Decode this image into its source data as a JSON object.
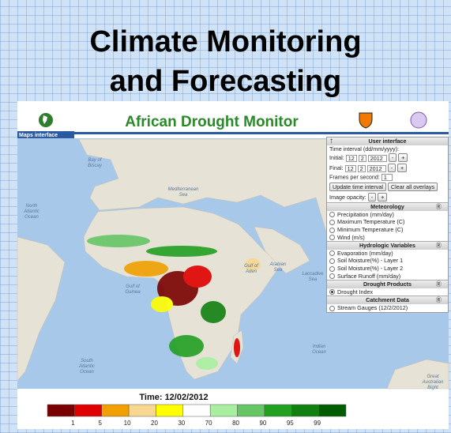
{
  "slide": {
    "title_line1": "Climate Monitoring",
    "title_line2": "and Forecasting"
  },
  "app": {
    "title": "African Drought Monitor",
    "tab": "Maps interface",
    "panel": {
      "header": "User interface",
      "time_interval": "Time interval (dd/mm/yyyy):",
      "initial": {
        "label": "Initial:",
        "day": "12",
        "month": "2",
        "year": "2012"
      },
      "final": {
        "label": "Final:",
        "day": "12",
        "month": "2",
        "year": "2012"
      },
      "stepper": [
        "-",
        "+"
      ],
      "fps": {
        "label": "Frames per second:",
        "value": "1"
      },
      "buttons": [
        "Update time interval",
        "Clear all overlays"
      ],
      "opacity": "Image opacity:",
      "sections": [
        {
          "title": "Meteorology",
          "options": [
            {
              "label": "Precipitation (mm/day)",
              "checked": false
            },
            {
              "label": "Maximum Temperature (C)",
              "checked": false
            },
            {
              "label": "Minimum Temperature (C)",
              "checked": false
            },
            {
              "label": "Wind (m/s)",
              "checked": false
            }
          ]
        },
        {
          "title": "Hydrologic Variables",
          "options": [
            {
              "label": "Evaporation (mm/day)",
              "checked": false
            },
            {
              "label": "Soil Moisture(%) - Layer 1",
              "checked": false
            },
            {
              "label": "Soil Moisture(%) - Layer 2",
              "checked": false
            },
            {
              "label": "Surface Runoff (mm/day)",
              "checked": false
            }
          ]
        },
        {
          "title": "Drought Products",
          "options": [
            {
              "label": "Drought Index",
              "checked": true
            }
          ]
        },
        {
          "title": "Catchment Data",
          "options": [
            {
              "label": "Stream Gauges (12/2/2012)",
              "checked": false
            }
          ]
        }
      ]
    },
    "map_labels": [
      [
        "North",
        "Atlantic",
        "Ocean"
      ],
      [
        "Bay of",
        "Biscay"
      ],
      [
        "Mediterranean",
        "Sea"
      ],
      [
        "Gulf of",
        "Guinea"
      ],
      [
        "Gulf of",
        "Aden"
      ],
      [
        "Arabian",
        "Sea"
      ],
      [
        "Laccadive",
        "Sea"
      ],
      [
        "Indian",
        "Ocean"
      ],
      [
        "South",
        "Atlantic",
        "Ocean"
      ],
      [
        "Great",
        "Australian",
        "Bight"
      ]
    ],
    "time": "Time: 12/02/2012",
    "legend": {
      "colors": [
        "#7a0000",
        "#e00000",
        "#f0a000",
        "#f8d890",
        "#ffff00",
        "#ffffff",
        "#a8f0a0",
        "#66c666",
        "#22a022",
        "#118011",
        "#005c00"
      ],
      "ticks": [
        1,
        5,
        10,
        20,
        30,
        70,
        80,
        90,
        95,
        99
      ]
    }
  }
}
